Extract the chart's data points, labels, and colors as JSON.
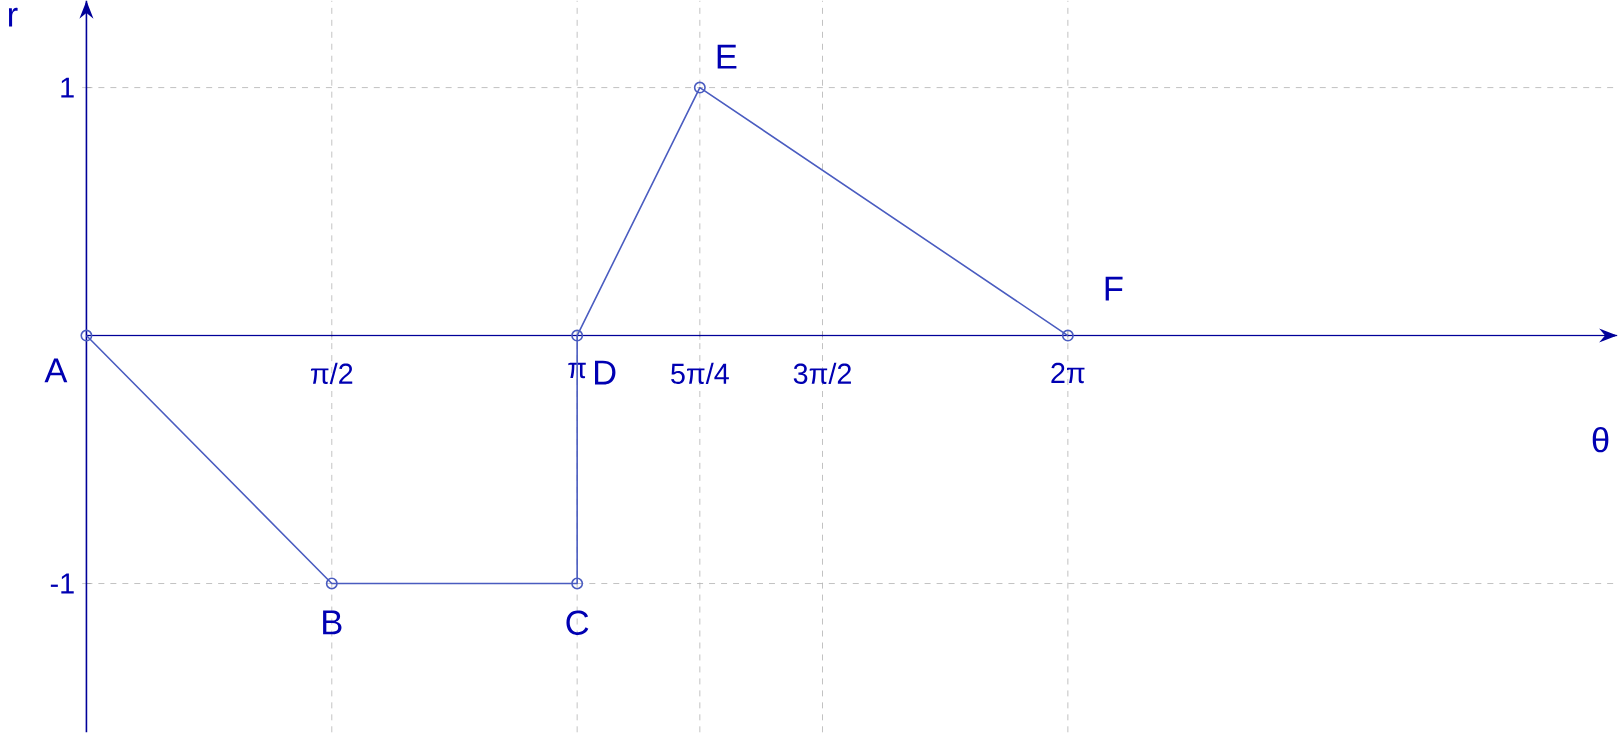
{
  "chart_data": {
    "type": "line",
    "xlabel": "θ",
    "ylabel": "r",
    "x": [
      0,
      1.5708,
      3.1416,
      3.1416,
      3.927,
      6.2832
    ],
    "series": [
      {
        "color": "#4a5cc0",
        "values": [
          0,
          -1,
          -1,
          0,
          1,
          0
        ]
      }
    ],
    "xlim": [
      0,
      9.8
    ],
    "ylim": [
      -1.6,
      1.35
    ],
    "xticks": [
      {
        "value": 1.5708,
        "label": "π/2"
      },
      {
        "value": 3.1416,
        "label": "π"
      },
      {
        "value": 3.927,
        "label": "5π/4"
      },
      {
        "value": 4.7124,
        "label": "3π/2"
      },
      {
        "value": 6.2832,
        "label": "2π"
      }
    ],
    "yticks": [
      -1,
      1
    ],
    "grid": true,
    "marker": "circle",
    "line_style": "solid",
    "annotations": [
      {
        "text": "A",
        "x": 0,
        "y": 0
      },
      {
        "text": "B",
        "x": 1.5708,
        "y": -1
      },
      {
        "text": "C",
        "x": 3.1416,
        "y": -1
      },
      {
        "text": "D",
        "x": 3.1416,
        "y": 0
      },
      {
        "text": "E",
        "x": 3.927,
        "y": 1
      },
      {
        "text": "F",
        "x": 6.2832,
        "y": 0
      }
    ]
  }
}
